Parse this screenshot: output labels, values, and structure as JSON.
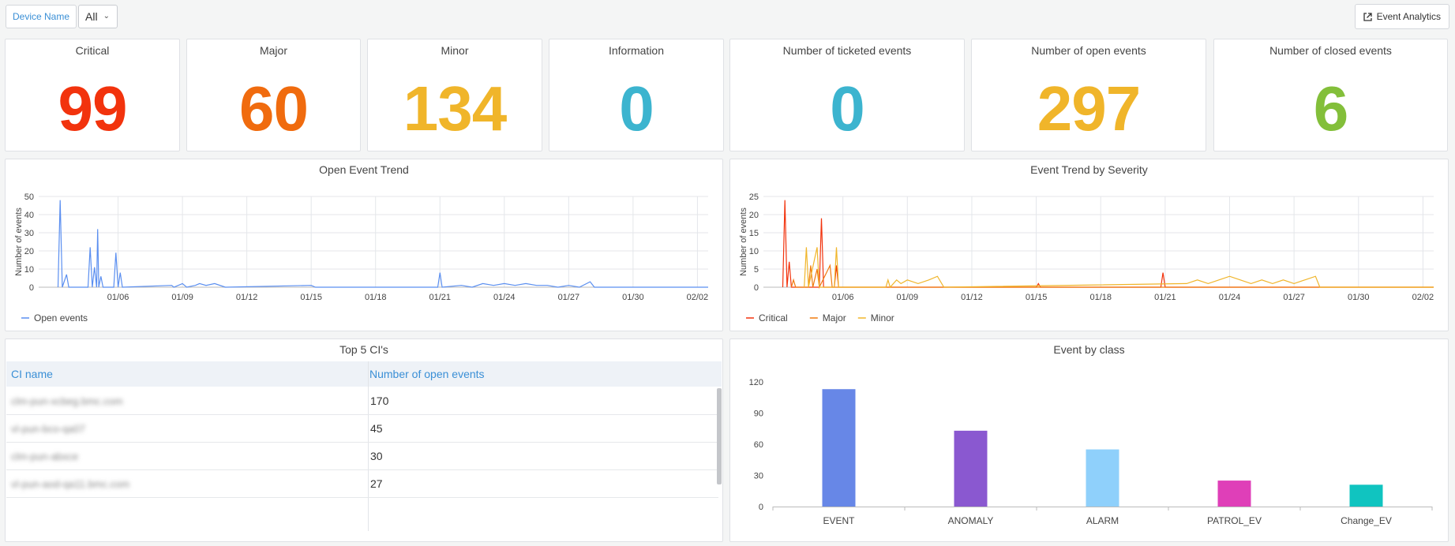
{
  "toolbar": {
    "device_label": "Device Name",
    "device_value": "All",
    "analytics_label": "Event Analytics"
  },
  "stats": [
    {
      "title": "Critical",
      "value": "99",
      "color": "#f2330d"
    },
    {
      "title": "Major",
      "value": "60",
      "color": "#f06b0e"
    },
    {
      "title": "Minor",
      "value": "134",
      "color": "#f0b52a"
    },
    {
      "title": "Information",
      "value": "0",
      "color": "#3cb4cf"
    },
    {
      "title": "Number of ticketed events",
      "value": "0",
      "color": "#3cb4cf"
    },
    {
      "title": "Number of open events",
      "value": "297",
      "color": "#f0b52a"
    },
    {
      "title": "Number of closed events",
      "value": "6",
      "color": "#83bf3a"
    }
  ],
  "trend": {
    "title": "Open Event Trend",
    "ylabel": "Number of events",
    "legend": "Open events",
    "color": "#5b8ff0"
  },
  "severity": {
    "title": "Event Trend by Severity",
    "ylabel": "Number of events",
    "legend": [
      "Critical",
      "Major",
      "Minor"
    ],
    "colors": [
      "#f2330d",
      "#f07a0e",
      "#f0b52a"
    ]
  },
  "top_ci": {
    "title": "Top 5 CI's",
    "col1": "CI name",
    "col2": "Number of open events",
    "rows": [
      {
        "name": "clm-pun-xcbeg.bmc.com",
        "count": "170"
      },
      {
        "name": "vl-pun-bco-qa07",
        "count": "45"
      },
      {
        "name": "clm-pun-abxce",
        "count": "30"
      },
      {
        "name": "vl-pun-aod-qa11.bmc.com",
        "count": "27"
      },
      {
        "name": "",
        "count": ""
      }
    ]
  },
  "chart_data": [
    {
      "type": "line",
      "title": "Open Event Trend",
      "ylabel": "Number of events",
      "xlabel": "",
      "x_ticks": [
        "01/06",
        "01/09",
        "01/12",
        "01/15",
        "01/18",
        "01/21",
        "01/24",
        "01/27",
        "01/30",
        "02/02"
      ],
      "y_ticks": [
        0,
        10,
        20,
        30,
        40,
        50
      ],
      "ylim": [
        0,
        50
      ],
      "grid": true,
      "legend_position": "bottom-left",
      "series": [
        {
          "name": "Open events",
          "color": "#5b8ff0",
          "points": [
            [
              3.2,
              0
            ],
            [
              3.3,
              48
            ],
            [
              3.4,
              0
            ],
            [
              3.6,
              7
            ],
            [
              3.7,
              0
            ],
            [
              4.6,
              0
            ],
            [
              4.7,
              22
            ],
            [
              4.8,
              0
            ],
            [
              4.9,
              11
            ],
            [
              5.0,
              0
            ],
            [
              5.05,
              32
            ],
            [
              5.1,
              0
            ],
            [
              5.2,
              6
            ],
            [
              5.3,
              0
            ],
            [
              5.8,
              0
            ],
            [
              5.9,
              19
            ],
            [
              6.0,
              0
            ],
            [
              6.1,
              8
            ],
            [
              6.2,
              0
            ],
            [
              8.5,
              1
            ],
            [
              8.6,
              0
            ],
            [
              9.0,
              2
            ],
            [
              9.2,
              0
            ],
            [
              9.6,
              1
            ],
            [
              9.8,
              2
            ],
            [
              10.1,
              1
            ],
            [
              10.5,
              2
            ],
            [
              11.0,
              0
            ],
            [
              15.0,
              1
            ],
            [
              15.2,
              0
            ],
            [
              20.9,
              0
            ],
            [
              21.0,
              8
            ],
            [
              21.1,
              0
            ],
            [
              22.0,
              1
            ],
            [
              22.5,
              0
            ],
            [
              23.0,
              2
            ],
            [
              23.5,
              1
            ],
            [
              24.0,
              2
            ],
            [
              24.5,
              1
            ],
            [
              25.0,
              2
            ],
            [
              25.5,
              1
            ],
            [
              26.0,
              1
            ],
            [
              26.5,
              0
            ],
            [
              27.0,
              1
            ],
            [
              27.5,
              0
            ],
            [
              28.0,
              3
            ],
            [
              28.2,
              0
            ],
            [
              33.5,
              0
            ]
          ]
        }
      ]
    },
    {
      "type": "line",
      "title": "Event Trend by Severity",
      "ylabel": "Number of events",
      "xlabel": "",
      "x_ticks": [
        "01/06",
        "01/09",
        "01/12",
        "01/15",
        "01/18",
        "01/21",
        "01/24",
        "01/27",
        "01/30",
        "02/02"
      ],
      "y_ticks": [
        0,
        5,
        10,
        15,
        20,
        25
      ],
      "ylim": [
        0,
        25
      ],
      "grid": true,
      "legend_position": "bottom-left",
      "series": [
        {
          "name": "Critical",
          "color": "#f2330d",
          "points": [
            [
              3.2,
              0
            ],
            [
              3.3,
              24
            ],
            [
              3.4,
              0
            ],
            [
              3.5,
              7
            ],
            [
              3.6,
              0
            ],
            [
              4.9,
              0
            ],
            [
              5.0,
              19
            ],
            [
              5.1,
              0
            ],
            [
              5.6,
              0
            ],
            [
              5.7,
              6
            ],
            [
              5.8,
              0
            ],
            [
              15.0,
              0
            ],
            [
              15.1,
              1
            ],
            [
              15.2,
              0
            ],
            [
              20.8,
              0
            ],
            [
              20.9,
              4
            ],
            [
              21.0,
              0
            ],
            [
              33.5,
              0
            ]
          ]
        },
        {
          "name": "Major",
          "color": "#f07a0e",
          "points": [
            [
              3.6,
              0
            ],
            [
              3.7,
              2
            ],
            [
              3.8,
              0
            ],
            [
              4.4,
              0
            ],
            [
              4.5,
              6
            ],
            [
              4.6,
              0
            ],
            [
              4.8,
              5
            ],
            [
              4.9,
              0
            ],
            [
              5.4,
              6
            ],
            [
              5.5,
              0
            ],
            [
              5.7,
              0
            ],
            [
              33.5,
              0
            ]
          ]
        },
        {
          "name": "Minor",
          "color": "#f0b52a",
          "points": [
            [
              4.2,
              0
            ],
            [
              4.3,
              11
            ],
            [
              4.4,
              0
            ],
            [
              4.8,
              11
            ],
            [
              4.9,
              0
            ],
            [
              5.6,
              0
            ],
            [
              5.7,
              11
            ],
            [
              5.8,
              0
            ],
            [
              8.0,
              0
            ],
            [
              8.1,
              2
            ],
            [
              8.2,
              0
            ],
            [
              8.5,
              2
            ],
            [
              8.7,
              1
            ],
            [
              9.0,
              2
            ],
            [
              9.5,
              1
            ],
            [
              10.0,
              2
            ],
            [
              10.4,
              3
            ],
            [
              10.7,
              0
            ],
            [
              22.0,
              1
            ],
            [
              22.5,
              2
            ],
            [
              23.0,
              1
            ],
            [
              23.5,
              2
            ],
            [
              24.0,
              3
            ],
            [
              24.5,
              2
            ],
            [
              25.0,
              1
            ],
            [
              25.5,
              2
            ],
            [
              26.0,
              1
            ],
            [
              26.5,
              2
            ],
            [
              27.0,
              1
            ],
            [
              27.5,
              2
            ],
            [
              28.0,
              3
            ],
            [
              28.2,
              0
            ],
            [
              33.5,
              0
            ]
          ]
        }
      ]
    },
    {
      "type": "bar",
      "title": "Event by class",
      "categories": [
        "EVENT",
        "ANOMALY",
        "ALARM",
        "PATROL_EV",
        "Change_EV"
      ],
      "values": [
        113,
        73,
        55,
        25,
        21
      ],
      "colors": [
        "#6787e7",
        "#8a58d0",
        "#8fd0fb",
        "#df3fb8",
        "#10c4c0"
      ],
      "y_ticks": [
        0,
        30,
        60,
        90,
        120
      ],
      "ylim": [
        0,
        120
      ],
      "xlabel": "",
      "ylabel": ""
    }
  ]
}
